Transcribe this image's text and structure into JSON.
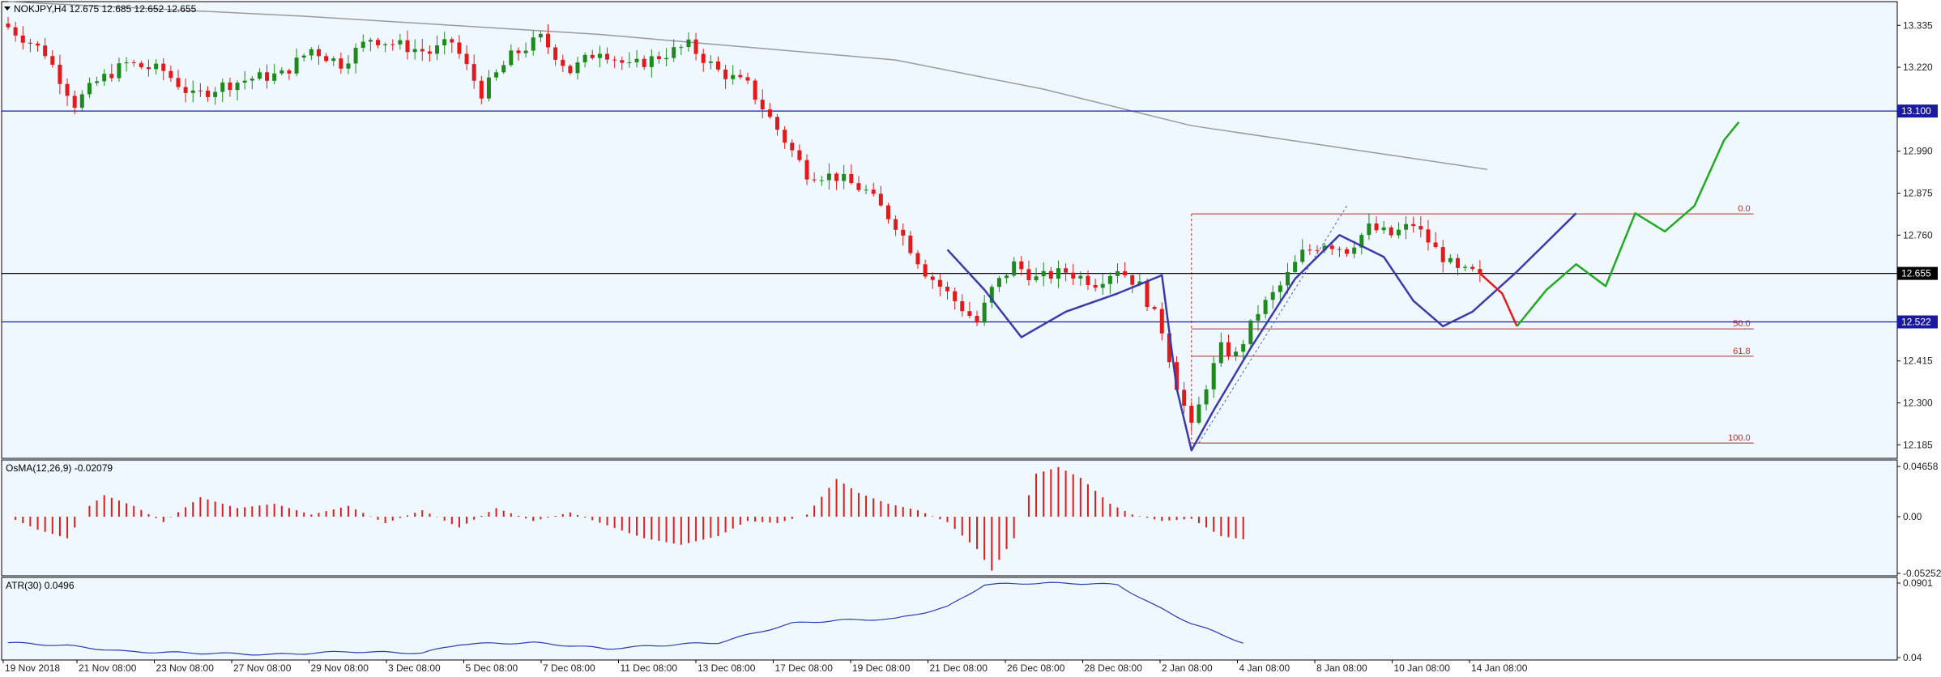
{
  "colors": {
    "background": "#f0f8ff",
    "bull": "#1e8a1e",
    "bear": "#e21a1a",
    "grid_text": "#222222",
    "hline_blue": "#1a1a9e",
    "hline_black": "#000000",
    "ma": "#9a9a9a",
    "blue_path": "#3b3ba8",
    "fib": "#b03030",
    "green_projection": "#22aa22",
    "red_projection": "#e21a1a",
    "osma": "#e21a1a",
    "atr": "#2a3ab0"
  },
  "main_panel": {
    "header": "NOKJPY,H4  12.675 12.685 12.652 12.655",
    "price_labels": [
      "13.335",
      "13.220",
      "12.990",
      "12.875",
      "12.760",
      "12.415",
      "12.300",
      "12.185"
    ],
    "ylim": [
      12.148,
      13.4
    ],
    "hlines": [
      {
        "label": "13.100",
        "value": 13.1,
        "style": "blue"
      },
      {
        "label": "12.655",
        "value": 12.655,
        "style": "black"
      },
      {
        "label": "12.522",
        "value": 12.522,
        "style": "blue"
      }
    ],
    "fib_levels": [
      {
        "label": "0.0",
        "value": 12.818
      },
      {
        "label": "50.0",
        "value": 12.503
      },
      {
        "label": "61.8",
        "value": 12.428
      },
      {
        "label": "100.0",
        "value": 12.19
      }
    ]
  },
  "osma_panel": {
    "label": "OsMA(12,26,9) -0.02079",
    "tick_labels": [
      "0.04658",
      "0.00",
      "-0.05252"
    ],
    "ylim": [
      -0.0525,
      0.0466
    ]
  },
  "atr_panel": {
    "label": "ATR(30) 0.0496",
    "tick_labels": [
      "0.0901",
      "0.04"
    ],
    "ylim": [
      0.04,
      0.0901
    ]
  },
  "x_axis": {
    "labels": [
      "19 Nov 2018",
      "21 Nov 08:00",
      "23 Nov 08:00",
      "27 Nov 08:00",
      "29 Nov 08:00",
      "3 Dec 08:00",
      "5 Dec 08:00",
      "7 Dec 08:00",
      "11 Dec 08:00",
      "13 Dec 08:00",
      "17 Dec 08:00",
      "19 Dec 08:00",
      "21 Dec 08:00",
      "26 Dec 08:00",
      "28 Dec 08:00",
      "2 Jan 08:00",
      "4 Jan 08:00",
      "8 Jan 08:00",
      "10 Jan 08:00",
      "14 Jan 08:00"
    ]
  },
  "chart_data": {
    "type": "candlestick",
    "symbol": "NOKJPY",
    "timeframe": "H4",
    "bar_count": 200,
    "close_anchors": [
      [
        0,
        13.33
      ],
      [
        5,
        13.26
      ],
      [
        9,
        13.12
      ],
      [
        12,
        13.18
      ],
      [
        16,
        13.23
      ],
      [
        21,
        13.21
      ],
      [
        25,
        13.14
      ],
      [
        29,
        13.17
      ],
      [
        33,
        13.19
      ],
      [
        37,
        13.2
      ],
      [
        41,
        13.27
      ],
      [
        45,
        13.23
      ],
      [
        49,
        13.3
      ],
      [
        53,
        13.28
      ],
      [
        57,
        13.26
      ],
      [
        60,
        13.29
      ],
      [
        64,
        13.15
      ],
      [
        68,
        13.25
      ],
      [
        72,
        13.3
      ],
      [
        76,
        13.21
      ],
      [
        80,
        13.27
      ],
      [
        84,
        13.22
      ],
      [
        88,
        13.25
      ],
      [
        92,
        13.28
      ],
      [
        96,
        13.21
      ],
      [
        100,
        13.17
      ],
      [
        104,
        13.05
      ],
      [
        108,
        12.93
      ],
      [
        112,
        12.92
      ],
      [
        116,
        12.88
      ],
      [
        120,
        12.79
      ],
      [
        124,
        12.66
      ],
      [
        128,
        12.58
      ],
      [
        131,
        12.52
      ],
      [
        133,
        12.61
      ],
      [
        136,
        12.68
      ],
      [
        139,
        12.64
      ],
      [
        143,
        12.66
      ],
      [
        147,
        12.63
      ],
      [
        150,
        12.67
      ],
      [
        153,
        12.62
      ],
      [
        156,
        12.5
      ],
      [
        158,
        12.35
      ],
      [
        160,
        12.23
      ],
      [
        162,
        12.35
      ],
      [
        164,
        12.45
      ],
      [
        166,
        12.43
      ],
      [
        169,
        12.55
      ],
      [
        172,
        12.62
      ],
      [
        175,
        12.71
      ],
      [
        178,
        12.74
      ],
      [
        181,
        12.72
      ],
      [
        184,
        12.78
      ],
      [
        187,
        12.76
      ],
      [
        190,
        12.79
      ],
      [
        193,
        12.72
      ],
      [
        196,
        12.66
      ],
      [
        199,
        12.655
      ]
    ],
    "osma_anchors": [
      [
        0,
        0.0
      ],
      [
        4,
        -0.012
      ],
      [
        8,
        -0.02
      ],
      [
        11,
        0.01
      ],
      [
        13,
        0.02
      ],
      [
        17,
        0.01
      ],
      [
        21,
        -0.005
      ],
      [
        26,
        0.018
      ],
      [
        31,
        0.008
      ],
      [
        36,
        0.012
      ],
      [
        41,
        0.002
      ],
      [
        46,
        0.01
      ],
      [
        51,
        -0.006
      ],
      [
        56,
        0.006
      ],
      [
        61,
        -0.01
      ],
      [
        66,
        0.008
      ],
      [
        71,
        -0.004
      ],
      [
        76,
        0.004
      ],
      [
        81,
        -0.008
      ],
      [
        86,
        -0.02
      ],
      [
        91,
        -0.026
      ],
      [
        96,
        -0.018
      ],
      [
        100,
        -0.004
      ],
      [
        104,
        -0.006
      ],
      [
        108,
        0.002
      ],
      [
        112,
        0.035
      ],
      [
        115,
        0.022
      ],
      [
        119,
        0.012
      ],
      [
        123,
        0.006
      ],
      [
        127,
        -0.005
      ],
      [
        131,
        -0.03
      ],
      [
        133,
        -0.05
      ],
      [
        136,
        -0.02
      ],
      [
        139,
        0.04
      ],
      [
        142,
        0.046
      ],
      [
        145,
        0.036
      ],
      [
        149,
        0.012
      ],
      [
        152,
        0.002
      ],
      [
        156,
        -0.004
      ],
      [
        160,
        -0.002
      ],
      [
        164,
        -0.018
      ],
      [
        167,
        -0.021
      ]
    ],
    "atr_anchors": [
      [
        0,
        0.05
      ],
      [
        8,
        0.048
      ],
      [
        16,
        0.044
      ],
      [
        26,
        0.043
      ],
      [
        36,
        0.042
      ],
      [
        46,
        0.044
      ],
      [
        56,
        0.043
      ],
      [
        61,
        0.049
      ],
      [
        71,
        0.05
      ],
      [
        81,
        0.046
      ],
      [
        91,
        0.049
      ],
      [
        96,
        0.05
      ],
      [
        106,
        0.063
      ],
      [
        112,
        0.065
      ],
      [
        120,
        0.066
      ],
      [
        127,
        0.074
      ],
      [
        132,
        0.089
      ],
      [
        138,
        0.09
      ],
      [
        144,
        0.09
      ],
      [
        150,
        0.089
      ],
      [
        155,
        0.075
      ],
      [
        160,
        0.063
      ],
      [
        167,
        0.05
      ]
    ],
    "ma_curve": [
      [
        0,
        13.4
      ],
      [
        40,
        13.36
      ],
      [
        80,
        13.31
      ],
      [
        120,
        13.24
      ],
      [
        140,
        13.16
      ],
      [
        160,
        13.06
      ],
      [
        180,
        13.0
      ],
      [
        200,
        12.94
      ]
    ],
    "blue_path": [
      [
        127,
        12.72
      ],
      [
        132,
        12.61
      ],
      [
        137,
        12.48
      ],
      [
        143,
        12.55
      ],
      [
        150,
        12.6
      ],
      [
        156,
        12.65
      ],
      [
        158,
        12.34
      ],
      [
        160,
        12.17
      ],
      [
        163,
        12.28
      ],
      [
        168,
        12.45
      ],
      [
        174,
        12.64
      ],
      [
        180,
        12.76
      ],
      [
        186,
        12.7
      ],
      [
        190,
        12.58
      ],
      [
        194,
        12.51
      ],
      [
        198,
        12.55
      ],
      [
        204,
        12.66
      ],
      [
        212,
        12.82
      ]
    ],
    "red_projection": [
      [
        199,
        12.655
      ],
      [
        202,
        12.6
      ],
      [
        204,
        12.51
      ]
    ],
    "green_projection": [
      [
        204,
        12.51
      ],
      [
        208,
        12.61
      ],
      [
        212,
        12.68
      ],
      [
        216,
        12.62
      ],
      [
        220,
        12.82
      ],
      [
        224,
        12.77
      ],
      [
        228,
        12.84
      ],
      [
        232,
        13.02
      ],
      [
        234,
        13.07
      ]
    ],
    "fib_segment": [
      160,
      236
    ],
    "dashed_trendline": [
      [
        161,
        12.19
      ],
      [
        181,
        12.84
      ]
    ]
  }
}
